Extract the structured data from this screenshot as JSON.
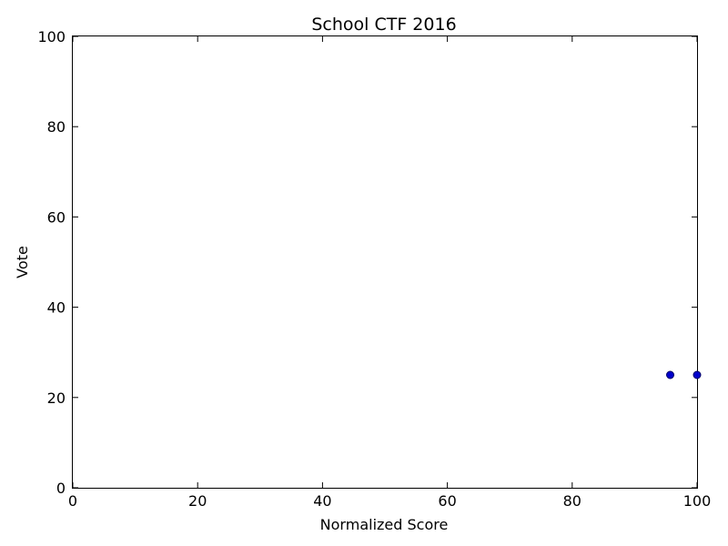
{
  "chart_data": {
    "type": "scatter",
    "title": "School CTF 2016",
    "xlabel": "Normalized Score",
    "ylabel": "Vote",
    "xlim": [
      0,
      100
    ],
    "ylim": [
      0,
      100
    ],
    "xticks": [
      "0",
      "20",
      "40",
      "60",
      "80",
      "100"
    ],
    "yticks": [
      "0",
      "20",
      "40",
      "60",
      "80",
      "100"
    ],
    "grid": false,
    "series": [
      {
        "points": [
          {
            "x": 95.7,
            "y": 25
          },
          {
            "x": 100,
            "y": 25
          }
        ]
      }
    ],
    "colors": {
      "marker_fill": "#0000cc",
      "marker_edge": "#000066",
      "axes": "#000000",
      "background": "#ffffff"
    }
  }
}
